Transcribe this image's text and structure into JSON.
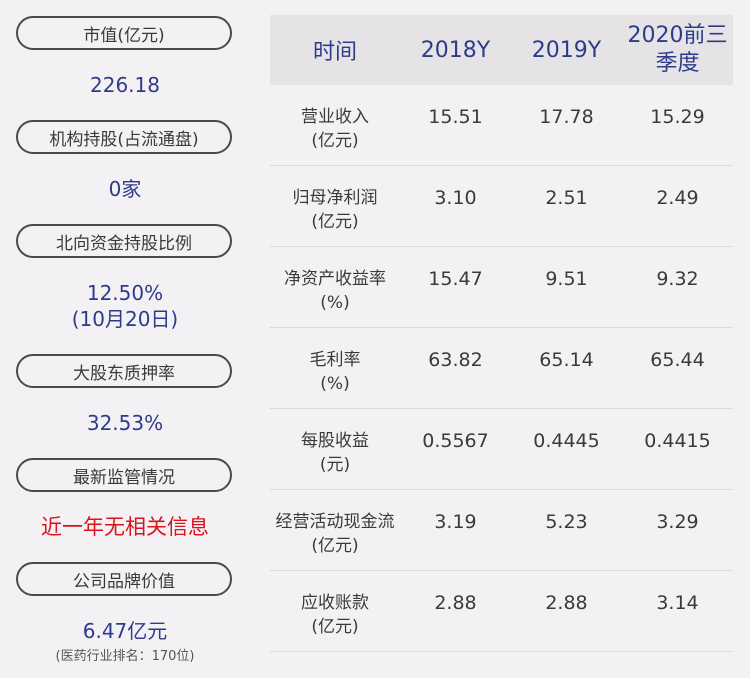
{
  "left_panel": {
    "items": [
      {
        "label": "市值(亿元)",
        "value": "226.18"
      },
      {
        "label": "机构持股(占流通盘)",
        "value": "0家"
      },
      {
        "label": "北向资金持股比例",
        "value": "12.50%",
        "value2": "(10月20日)"
      },
      {
        "label": "大股东质押率",
        "value": "32.53%"
      },
      {
        "label": "最新监管情况",
        "value": "近一年无相关信息"
      },
      {
        "label": "公司品牌价值",
        "value": "6.47亿元",
        "note": "(医药行业排名：170位)"
      }
    ]
  },
  "table": {
    "headers": [
      "时间",
      "2018Y",
      "2019Y",
      "2020前三季度"
    ],
    "rows": [
      {
        "label": "营业收入",
        "unit": "(亿元)",
        "values": [
          "15.51",
          "17.78",
          "15.29"
        ]
      },
      {
        "label": "归母净利润",
        "unit": "(亿元)",
        "values": [
          "3.10",
          "2.51",
          "2.49"
        ]
      },
      {
        "label": "净资产收益率",
        "unit": "(%)",
        "values": [
          "15.47",
          "9.51",
          "9.32"
        ]
      },
      {
        "label": "毛利率",
        "unit": "(%)",
        "values": [
          "63.82",
          "65.14",
          "65.44"
        ]
      },
      {
        "label": "每股收益",
        "unit": "(元)",
        "values": [
          "0.5567",
          "0.4445",
          "0.4415"
        ]
      },
      {
        "label": "经营活动现金流",
        "unit": "(亿元)",
        "values": [
          "3.19",
          "5.23",
          "3.29"
        ]
      },
      {
        "label": "应收账款",
        "unit": "(亿元)",
        "values": [
          "2.88",
          "2.88",
          "3.14"
        ]
      }
    ]
  },
  "colors": {
    "accent": "#2d3c8a",
    "alert": "#d8141c",
    "background": "#f4f1f5",
    "header_bg": "#e6e3e7"
  }
}
